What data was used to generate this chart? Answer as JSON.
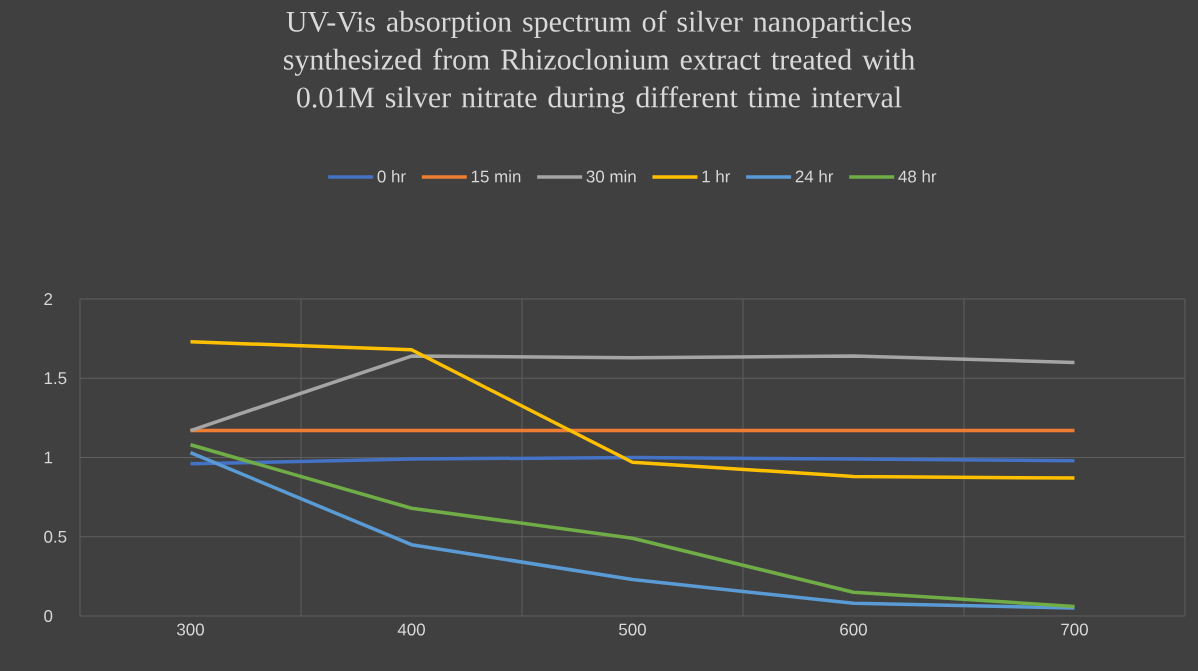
{
  "chart_data": {
    "type": "line",
    "title": "UV-Vis absorption spectrum of silver nanoparticles synthesized from Rhizoclonium extract treated with 0.01M silver nitrate during different time interval",
    "categories": [
      "300",
      "400",
      "500",
      "600",
      "700"
    ],
    "series": [
      {
        "name": "0 hr",
        "color": "#4472c4",
        "values": [
          0.96,
          0.99,
          1.0,
          0.99,
          0.98
        ]
      },
      {
        "name": "15 min",
        "color": "#ed7d31",
        "values": [
          1.17,
          1.17,
          1.17,
          1.17,
          1.17
        ]
      },
      {
        "name": "30 min",
        "color": "#a5a5a5",
        "values": [
          1.17,
          1.64,
          1.63,
          1.64,
          1.6
        ]
      },
      {
        "name": "1 hr",
        "color": "#ffc000",
        "values": [
          1.73,
          1.68,
          0.97,
          0.88,
          0.87
        ]
      },
      {
        "name": "24 hr",
        "color": "#5b9bd5",
        "values": [
          1.03,
          0.45,
          0.23,
          0.08,
          0.05
        ]
      },
      {
        "name": "48 hr",
        "color": "#70ad47",
        "values": [
          1.08,
          0.68,
          0.49,
          0.15,
          0.06
        ]
      }
    ],
    "ylim": [
      0,
      2
    ],
    "yticks": [
      0,
      0.5,
      1,
      1.5,
      2
    ],
    "grid": true,
    "legend": "top",
    "marker": "none",
    "line_style": "solid"
  }
}
